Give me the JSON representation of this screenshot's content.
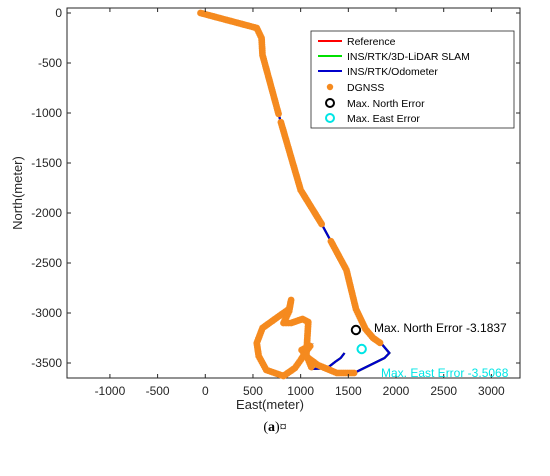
{
  "caption": {
    "label": "a",
    "suffix": "¤"
  },
  "chart_data": {
    "type": "line",
    "xlabel": "East(meter)",
    "ylabel": "North(meter)",
    "xlim": [
      -1450,
      3300
    ],
    "ylim": [
      -3650,
      50
    ],
    "xticks": [
      -1000,
      -500,
      0,
      500,
      1000,
      1500,
      2000,
      2500,
      3000
    ],
    "yticks": [
      0,
      -500,
      -1000,
      -1500,
      -2000,
      -2500,
      -3000,
      -3500
    ],
    "xtick_labels": [
      "-1000",
      "-500",
      "0",
      "500",
      "1000",
      "1500",
      "2000",
      "2500",
      "3000"
    ],
    "ytick_labels": [
      "0",
      "-500",
      "-1000",
      "-1500",
      "-2000",
      "-2500",
      "-3000",
      "-3500"
    ],
    "grid": false,
    "legend_position": "top-right",
    "colors": {
      "reference": "#ff0000",
      "slam": "#00e000",
      "odometer": "#0000cc",
      "dgnss": "#f58a1f",
      "north_error": "#000000",
      "east_error": "#00e5e5"
    },
    "legend": {
      "reference": "Reference",
      "slam": "INS/RTK/3D-LiDAR SLAM",
      "odometer": "INS/RTK/Odometer",
      "dgnss": "DGNSS",
      "north_error": "Max. North Error",
      "east_error": "Max. East Error"
    },
    "trajectory": {
      "x": [
        -50,
        540,
        590,
        600,
        780,
        1000,
        1220,
        1480,
        1580,
        1680,
        1760,
        1850,
        1930,
        1880,
        1560,
        1380,
        1180,
        1080,
        1010,
        1050,
        1100,
        1060,
        1000,
        940,
        820,
        640,
        560,
        540,
        600,
        760,
        880,
        900,
        880,
        840,
        820,
        900,
        1020,
        1080,
        1070,
        1060,
        1120,
        1280,
        1360,
        1420,
        1460
      ],
      "y": [
        0,
        -150,
        -250,
        -420,
        -1050,
        -1770,
        -2110,
        -2570,
        -2960,
        -3160,
        -3250,
        -3310,
        -3400,
        -3450,
        -3600,
        -3600,
        -3520,
        -3450,
        -3370,
        -3350,
        -3330,
        -3380,
        -3470,
        -3550,
        -3630,
        -3570,
        -3430,
        -3300,
        -3150,
        -3040,
        -2960,
        -2870,
        -2980,
        -3060,
        -3100,
        -3100,
        -3060,
        -3090,
        -3250,
        -3420,
        -3560,
        -3550,
        -3490,
        -3450,
        -3400
      ]
    },
    "dgnss_gaps_x": [
      [
        770,
        790
      ],
      [
        1230,
        1310
      ]
    ],
    "max_north_error": {
      "x": 1580,
      "y": -3170,
      "label": "Max. North Error -3.1837"
    },
    "max_east_error": {
      "x": 1640,
      "y": -3360,
      "label": "Max. East Error -3.5068"
    }
  }
}
